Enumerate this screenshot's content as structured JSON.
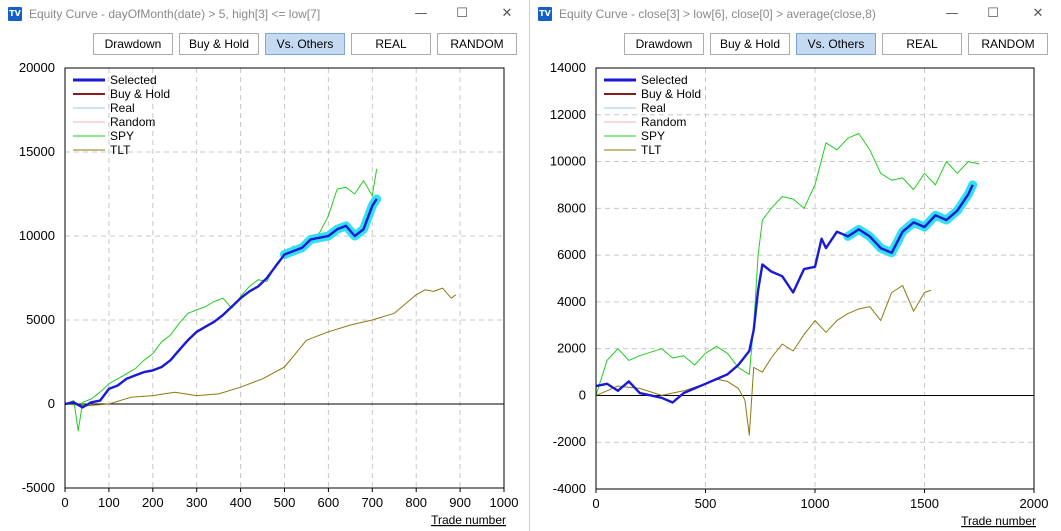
{
  "windows": [
    {
      "title": "Equity Curve - dayOfMonth(date) > 5, high[3] <= low[7]",
      "icon": "tv-app-icon",
      "buttons": [
        "Drawdown",
        "Buy & Hold",
        "Vs. Others",
        "REAL",
        "RANDOM"
      ],
      "active_button": "Vs. Others",
      "chart_data": {
        "type": "line",
        "xlabel": "Trade number",
        "ylabel": "",
        "xlim": [
          0,
          1000
        ],
        "ylim": [
          -5000,
          20000
        ],
        "x_ticks": [
          "0",
          "100",
          "200",
          "300",
          "400",
          "500",
          "600",
          "700",
          "800",
          "900",
          "1000"
        ],
        "y_ticks": [
          "-5000",
          "0",
          "5000",
          "10000",
          "15000",
          "20000"
        ],
        "grid": true,
        "legend_position": "top-left",
        "legend": [
          "Selected",
          "Buy & Hold",
          "Real",
          "Random",
          "SPY",
          "TLT"
        ],
        "series": [
          {
            "name": "Selected",
            "color": "#1a1ad6",
            "x": [
              0,
              20,
              40,
              60,
              80,
              100,
              120,
              140,
              160,
              180,
              200,
              220,
              240,
              260,
              280,
              300,
              320,
              340,
              360,
              380,
              400,
              420,
              440,
              460,
              480,
              500,
              520,
              540,
              560,
              580,
              600,
              620,
              640,
              660,
              680,
              700,
              710
            ],
            "y": [
              0,
              100,
              -200,
              100,
              200,
              900,
              1100,
              1500,
              1700,
              1900,
              2000,
              2200,
              2600,
              3200,
              3800,
              4300,
              4600,
              4900,
              5300,
              5800,
              6300,
              6700,
              7000,
              7500,
              8200,
              8900,
              9100,
              9300,
              9800,
              9900,
              10000,
              10400,
              10600,
              10000,
              10400,
              11800,
              12200
            ]
          },
          {
            "name": "SPY",
            "color": "#22cc22",
            "x": [
              0,
              20,
              30,
              40,
              60,
              80,
              100,
              120,
              140,
              160,
              180,
              200,
              220,
              240,
              260,
              280,
              300,
              320,
              340,
              360,
              380,
              400,
              420,
              440,
              460,
              480,
              500,
              520,
              540,
              560,
              580,
              600,
              620,
              640,
              660,
              680,
              700,
              710
            ],
            "y": [
              0,
              200,
              -1600,
              100,
              300,
              700,
              1200,
              1500,
              1800,
              2100,
              2600,
              3000,
              3700,
              4100,
              4800,
              5400,
              5600,
              5800,
              6100,
              6300,
              5700,
              6400,
              7000,
              7400,
              7300,
              8300,
              8900,
              9400,
              9200,
              9600,
              10200,
              11200,
              12800,
              12900,
              12500,
              13300,
              12400,
              14000
            ]
          },
          {
            "name": "TLT",
            "color": "#8b7a12",
            "x": [
              0,
              50,
              100,
              150,
              200,
              250,
              300,
              350,
              400,
              450,
              500,
              550,
              600,
              650,
              700,
              750,
              800,
              820,
              840,
              860,
              880,
              890
            ],
            "y": [
              0,
              -100,
              0,
              400,
              500,
              700,
              500,
              600,
              1000,
              1500,
              2200,
              3800,
              4300,
              4700,
              5000,
              5400,
              6500,
              6800,
              6700,
              6900,
              6300,
              6500
            ]
          }
        ]
      }
    },
    {
      "title": "Equity Curve - close[3] > low[6], close[0] > average(close,8)",
      "icon": "tv-app-icon",
      "buttons": [
        "Drawdown",
        "Buy & Hold",
        "Vs. Others",
        "REAL",
        "RANDOM"
      ],
      "active_button": "Vs. Others",
      "chart_data": {
        "type": "line",
        "xlabel": "Trade number",
        "ylabel": "",
        "xlim": [
          0,
          2000
        ],
        "ylim": [
          -4000,
          14000
        ],
        "x_ticks": [
          "0",
          "500",
          "1000",
          "1500",
          "2000"
        ],
        "y_ticks": [
          "-4000",
          "-2000",
          "0",
          "2000",
          "4000",
          "6000",
          "8000",
          "10000",
          "12000",
          "14000"
        ],
        "grid": true,
        "legend_position": "top-left",
        "legend": [
          "Selected",
          "Buy & Hold",
          "Real",
          "Random",
          "SPY",
          "TLT"
        ],
        "series": [
          {
            "name": "Selected",
            "color": "#1a1ad6",
            "x": [
              0,
              50,
              100,
              150,
              200,
              300,
              350,
              400,
              450,
              500,
              550,
              600,
              650,
              700,
              720,
              740,
              760,
              800,
              850,
              900,
              950,
              1000,
              1030,
              1050,
              1100,
              1150,
              1200,
              1250,
              1300,
              1350,
              1400,
              1450,
              1500,
              1550,
              1600,
              1650,
              1700,
              1720
            ],
            "y": [
              400,
              500,
              200,
              600,
              100,
              -100,
              -300,
              100,
              300,
              500,
              700,
              900,
              1300,
              1900,
              2800,
              4500,
              5600,
              5300,
              5100,
              4400,
              5400,
              5500,
              6700,
              6300,
              7000,
              6800,
              7100,
              6800,
              6300,
              6100,
              7000,
              7400,
              7200,
              7700,
              7500,
              7900,
              8600,
              9000
            ]
          },
          {
            "name": "SPY",
            "color": "#22cc22",
            "x": [
              0,
              50,
              100,
              150,
              200,
              300,
              350,
              400,
              450,
              500,
              550,
              600,
              650,
              700,
              720,
              740,
              760,
              800,
              850,
              900,
              950,
              1000,
              1050,
              1100,
              1150,
              1200,
              1250,
              1300,
              1350,
              1400,
              1450,
              1500,
              1550,
              1600,
              1650,
              1700,
              1750
            ],
            "y": [
              0,
              1500,
              2000,
              1500,
              1700,
              2000,
              1600,
              1700,
              1300,
              1800,
              2100,
              1800,
              1200,
              900,
              3000,
              6000,
              7500,
              8000,
              8500,
              8400,
              8000,
              9000,
              10800,
              10500,
              11000,
              11200,
              10500,
              9500,
              9200,
              9300,
              8800,
              9500,
              9000,
              10000,
              9500,
              10000,
              9900
            ]
          },
          {
            "name": "TLT",
            "color": "#8b7a12",
            "x": [
              0,
              50,
              100,
              200,
              300,
              400,
              500,
              550,
              600,
              650,
              680,
              700,
              720,
              760,
              800,
              850,
              900,
              950,
              1000,
              1050,
              1100,
              1150,
              1200,
              1250,
              1300,
              1350,
              1400,
              1450,
              1500,
              1530
            ],
            "y": [
              0,
              200,
              400,
              300,
              0,
              200,
              500,
              700,
              600,
              300,
              -200,
              -1700,
              1200,
              1000,
              1600,
              2200,
              1900,
              2600,
              3200,
              2700,
              3200,
              3500,
              3700,
              3800,
              3200,
              4400,
              4700,
              3600,
              4400,
              4500
            ]
          }
        ]
      }
    }
  ]
}
